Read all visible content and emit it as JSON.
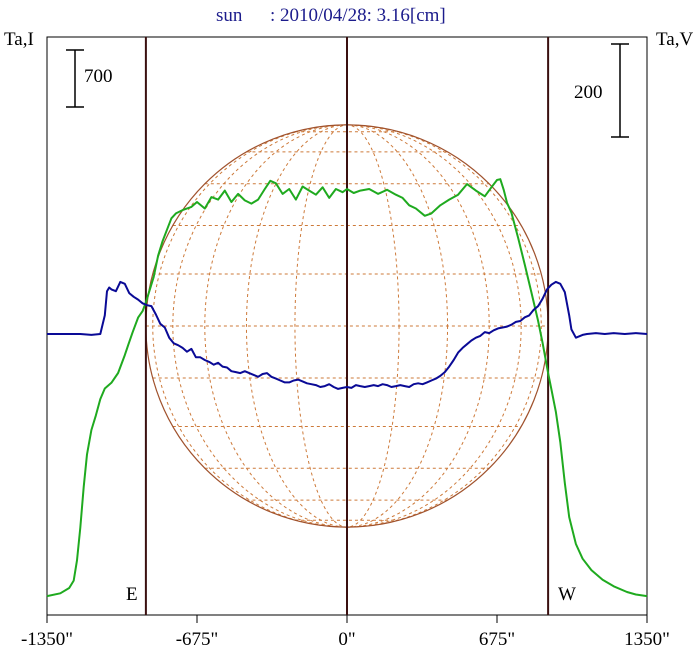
{
  "header": {
    "object": "sun",
    "date_text": ": 2010/04/28: 3.16[cm]"
  },
  "axes": {
    "left_label": "Ta,I",
    "right_label": "Ta,V",
    "scale_left_label": "700",
    "scale_right_label": "200",
    "east_label": "E",
    "west_label": "W"
  },
  "colors": {
    "title": "#1c1c8c",
    "intensity": "#1faa1f",
    "polarization": "#0a0a96",
    "disk": "#a0522d",
    "grid": "#cd7a3a",
    "axis_lines": "#3a1010"
  },
  "chart_data": {
    "type": "line",
    "x_unit": "arcsec",
    "xlim": [
      -1350,
      1350
    ],
    "xticks": [
      -1350,
      -675,
      0,
      675,
      1350
    ],
    "xtick_labels": [
      "-1350\"",
      "-675\"",
      "0\"",
      "675\"",
      "1350\""
    ],
    "limb_x": [
      -905,
      905
    ],
    "series": [
      {
        "name": "Ta,I",
        "axis": "left",
        "points": [
          [
            -1350,
            60
          ],
          [
            -1290,
            95
          ],
          [
            -1250,
            160
          ],
          [
            -1230,
            250
          ],
          [
            -1215,
            500
          ],
          [
            -1200,
            900
          ],
          [
            -1185,
            1400
          ],
          [
            -1170,
            1800
          ],
          [
            -1150,
            2100
          ],
          [
            -1130,
            2280
          ],
          [
            -1110,
            2480
          ],
          [
            -1090,
            2610
          ],
          [
            -1060,
            2680
          ],
          [
            -1030,
            2800
          ],
          [
            -1000,
            3020
          ],
          [
            -985,
            3140
          ],
          [
            -965,
            3300
          ],
          [
            -940,
            3480
          ],
          [
            -920,
            3560
          ],
          [
            -905,
            3670
          ],
          [
            -890,
            3800
          ],
          [
            -870,
            3980
          ],
          [
            -850,
            4240
          ],
          [
            -830,
            4420
          ],
          [
            -810,
            4560
          ],
          [
            -790,
            4700
          ],
          [
            -770,
            4760
          ],
          [
            -740,
            4800
          ],
          [
            -700,
            4840
          ],
          [
            -675,
            4900
          ],
          [
            -640,
            4820
          ],
          [
            -610,
            4960
          ],
          [
            -580,
            4930
          ],
          [
            -550,
            5040
          ],
          [
            -520,
            4900
          ],
          [
            -490,
            5000
          ],
          [
            -460,
            4920
          ],
          [
            -430,
            4880
          ],
          [
            -400,
            4930
          ],
          [
            -370,
            5060
          ],
          [
            -345,
            5160
          ],
          [
            -320,
            5130
          ],
          [
            -290,
            5000
          ],
          [
            -260,
            5060
          ],
          [
            -230,
            4930
          ],
          [
            -200,
            5090
          ],
          [
            -170,
            5040
          ],
          [
            -140,
            4990
          ],
          [
            -110,
            5080
          ],
          [
            -80,
            4950
          ],
          [
            -50,
            5060
          ],
          [
            -20,
            5020
          ],
          [
            0,
            5060
          ],
          [
            30,
            5010
          ],
          [
            60,
            5040
          ],
          [
            100,
            5060
          ],
          [
            140,
            5000
          ],
          [
            180,
            5050
          ],
          [
            220,
            4990
          ],
          [
            250,
            4950
          ],
          [
            280,
            4860
          ],
          [
            310,
            4820
          ],
          [
            350,
            4730
          ],
          [
            380,
            4760
          ],
          [
            420,
            4860
          ],
          [
            460,
            4930
          ],
          [
            500,
            4990
          ],
          [
            540,
            5120
          ],
          [
            580,
            5040
          ],
          [
            620,
            4970
          ],
          [
            650,
            5080
          ],
          [
            675,
            5170
          ],
          [
            690,
            5180
          ],
          [
            705,
            5050
          ],
          [
            720,
            4890
          ],
          [
            740,
            4770
          ],
          [
            770,
            4460
          ],
          [
            800,
            4130
          ],
          [
            830,
            3790
          ],
          [
            860,
            3440
          ],
          [
            880,
            3170
          ],
          [
            905,
            2800
          ],
          [
            920,
            2600
          ],
          [
            940,
            2320
          ],
          [
            960,
            1950
          ],
          [
            980,
            1450
          ],
          [
            1000,
            1030
          ],
          [
            1030,
            700
          ],
          [
            1060,
            520
          ],
          [
            1100,
            380
          ],
          [
            1150,
            260
          ],
          [
            1200,
            180
          ],
          [
            1260,
            110
          ],
          [
            1300,
            80
          ],
          [
            1350,
            60
          ]
        ]
      },
      {
        "name": "Ta,V",
        "axis": "right",
        "points": [
          [
            -1350,
            0
          ],
          [
            -1200,
            0
          ],
          [
            -1150,
            -2
          ],
          [
            -1110,
            0
          ],
          [
            -1090,
            40
          ],
          [
            -1080,
            92
          ],
          [
            -1070,
            100
          ],
          [
            -1060,
            96
          ],
          [
            -1040,
            92
          ],
          [
            -1020,
            112
          ],
          [
            -1000,
            108
          ],
          [
            -980,
            88
          ],
          [
            -960,
            80
          ],
          [
            -940,
            74
          ],
          [
            -920,
            66
          ],
          [
            -900,
            62
          ],
          [
            -880,
            60
          ],
          [
            -860,
            42
          ],
          [
            -840,
            22
          ],
          [
            -820,
            14
          ],
          [
            -800,
            -8
          ],
          [
            -780,
            -20
          ],
          [
            -760,
            -24
          ],
          [
            -740,
            -30
          ],
          [
            -720,
            -38
          ],
          [
            -700,
            -32
          ],
          [
            -680,
            -50
          ],
          [
            -660,
            -50
          ],
          [
            -640,
            -56
          ],
          [
            -620,
            -60
          ],
          [
            -600,
            -66
          ],
          [
            -580,
            -62
          ],
          [
            -560,
            -70
          ],
          [
            -540,
            -72
          ],
          [
            -520,
            -80
          ],
          [
            -500,
            -82
          ],
          [
            -480,
            -84
          ],
          [
            -460,
            -80
          ],
          [
            -440,
            -84
          ],
          [
            -420,
            -88
          ],
          [
            -400,
            -92
          ],
          [
            -380,
            -86
          ],
          [
            -360,
            -84
          ],
          [
            -340,
            -92
          ],
          [
            -320,
            -96
          ],
          [
            -300,
            -100
          ],
          [
            -280,
            -104
          ],
          [
            -260,
            -104
          ],
          [
            -240,
            -100
          ],
          [
            -220,
            -98
          ],
          [
            -200,
            -102
          ],
          [
            -180,
            -106
          ],
          [
            -160,
            -108
          ],
          [
            -140,
            -110
          ],
          [
            -120,
            -114
          ],
          [
            -100,
            -112
          ],
          [
            -80,
            -108
          ],
          [
            -60,
            -114
          ],
          [
            -40,
            -118
          ],
          [
            -20,
            -116
          ],
          [
            0,
            -114
          ],
          [
            20,
            -116
          ],
          [
            40,
            -110
          ],
          [
            60,
            -112
          ],
          [
            80,
            -114
          ],
          [
            100,
            -112
          ],
          [
            120,
            -110
          ],
          [
            140,
            -112
          ],
          [
            160,
            -108
          ],
          [
            180,
            -110
          ],
          [
            200,
            -114
          ],
          [
            220,
            -112
          ],
          [
            240,
            -110
          ],
          [
            260,
            -112
          ],
          [
            280,
            -114
          ],
          [
            300,
            -108
          ],
          [
            320,
            -106
          ],
          [
            340,
            -108
          ],
          [
            360,
            -104
          ],
          [
            380,
            -100
          ],
          [
            400,
            -96
          ],
          [
            420,
            -90
          ],
          [
            440,
            -82
          ],
          [
            460,
            -70
          ],
          [
            480,
            -56
          ],
          [
            500,
            -40
          ],
          [
            520,
            -30
          ],
          [
            540,
            -22
          ],
          [
            560,
            -14
          ],
          [
            580,
            -8
          ],
          [
            600,
            -4
          ],
          [
            620,
            4
          ],
          [
            640,
            2
          ],
          [
            660,
            8
          ],
          [
            680,
            12
          ],
          [
            700,
            14
          ],
          [
            720,
            16
          ],
          [
            740,
            20
          ],
          [
            760,
            26
          ],
          [
            780,
            28
          ],
          [
            800,
            36
          ],
          [
            820,
            40
          ],
          [
            840,
            52
          ],
          [
            860,
            60
          ],
          [
            880,
            76
          ],
          [
            900,
            96
          ],
          [
            920,
            106
          ],
          [
            940,
            112
          ],
          [
            960,
            108
          ],
          [
            980,
            90
          ],
          [
            1000,
            40
          ],
          [
            1010,
            10
          ],
          [
            1030,
            -8
          ],
          [
            1060,
            -2
          ],
          [
            1080,
            0
          ],
          [
            1120,
            2
          ],
          [
            1160,
            0
          ],
          [
            1200,
            2
          ],
          [
            1250,
            0
          ],
          [
            1300,
            2
          ],
          [
            1350,
            0
          ]
        ]
      }
    ]
  }
}
